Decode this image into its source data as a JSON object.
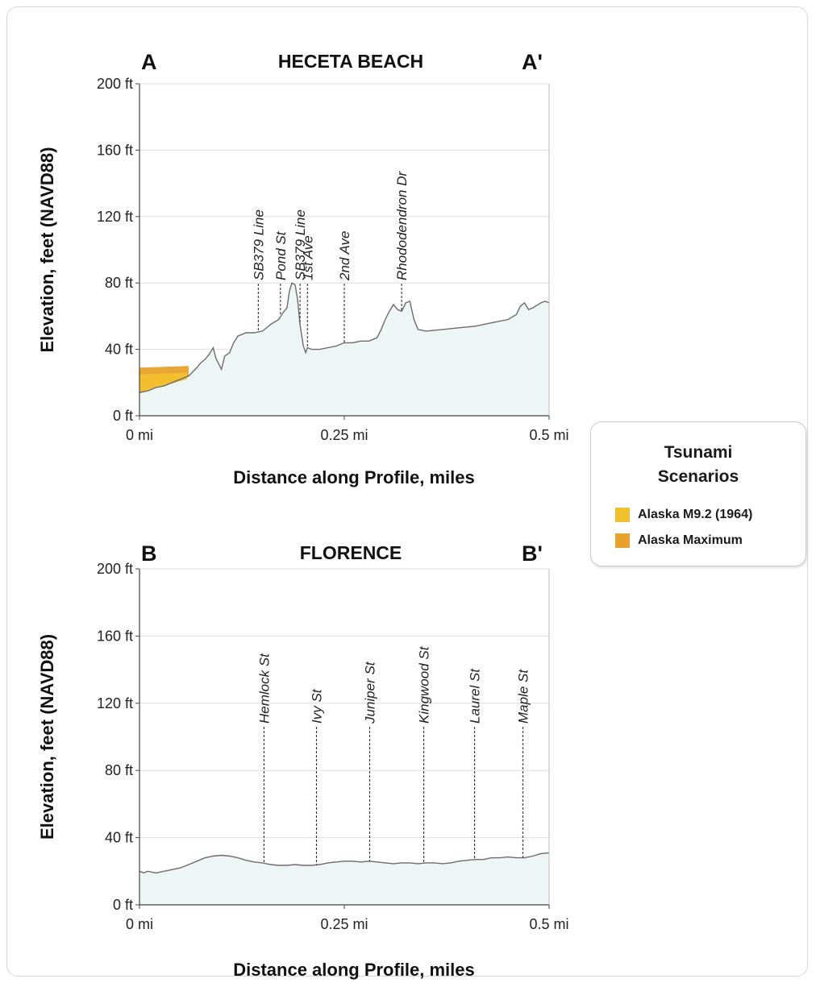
{
  "colors": {
    "land_fill": "#eef5f5",
    "profile_line": "#6b6b6b",
    "grid": "#dddddd",
    "axis": "#444444",
    "alaska_m92": "#f2c12e",
    "alaska_max": "#e8a12a"
  },
  "legend": {
    "title_line1": "Tsunami",
    "title_line2": "Scenarios",
    "items": [
      {
        "label": "Alaska M9.2 (1964)",
        "color": "#f2c12e"
      },
      {
        "label": "Alaska Maximum",
        "color": "#e8a12a"
      }
    ]
  },
  "chart_data": [
    {
      "type": "area",
      "title": "HECETA BEACH",
      "left_label": "A",
      "right_label": "A'",
      "xlabel": "Distance along Profile, miles",
      "ylabel": "Elevation, feet (NAVD88)",
      "xlim": [
        0,
        0.5
      ],
      "ylim": [
        0,
        200
      ],
      "xticks": [
        {
          "value": 0,
          "label": "0 mi"
        },
        {
          "value": 0.25,
          "label": "0.25 mi"
        },
        {
          "value": 0.5,
          "label": "0.5 mi"
        }
      ],
      "yticks": [
        {
          "value": 0,
          "label": "0 ft"
        },
        {
          "value": 40,
          "label": "40 ft"
        },
        {
          "value": 80,
          "label": "80 ft"
        },
        {
          "value": 120,
          "label": "120 ft"
        },
        {
          "value": 160,
          "label": "160 ft"
        },
        {
          "value": 200,
          "label": "200 ft"
        }
      ],
      "profile": [
        [
          0,
          14
        ],
        [
          0.01,
          15
        ],
        [
          0.02,
          17
        ],
        [
          0.03,
          18
        ],
        [
          0.04,
          20
        ],
        [
          0.05,
          22
        ],
        [
          0.06,
          24
        ],
        [
          0.07,
          29
        ],
        [
          0.075,
          32
        ],
        [
          0.08,
          34
        ],
        [
          0.085,
          37
        ],
        [
          0.09,
          41
        ],
        [
          0.093,
          35
        ],
        [
          0.096,
          32
        ],
        [
          0.1,
          28
        ],
        [
          0.104,
          36
        ],
        [
          0.11,
          38
        ],
        [
          0.115,
          44
        ],
        [
          0.12,
          48
        ],
        [
          0.13,
          50
        ],
        [
          0.14,
          50
        ],
        [
          0.15,
          51
        ],
        [
          0.16,
          55
        ],
        [
          0.17,
          58
        ],
        [
          0.175,
          62
        ],
        [
          0.18,
          65
        ],
        [
          0.183,
          75
        ],
        [
          0.186,
          80
        ],
        [
          0.19,
          79
        ],
        [
          0.193,
          70
        ],
        [
          0.196,
          55
        ],
        [
          0.2,
          42
        ],
        [
          0.203,
          38
        ],
        [
          0.205,
          41
        ],
        [
          0.21,
          40
        ],
        [
          0.22,
          40
        ],
        [
          0.23,
          41
        ],
        [
          0.24,
          42
        ],
        [
          0.25,
          44
        ],
        [
          0.26,
          44
        ],
        [
          0.27,
          45
        ],
        [
          0.28,
          45
        ],
        [
          0.29,
          47
        ],
        [
          0.295,
          52
        ],
        [
          0.3,
          58
        ],
        [
          0.305,
          63
        ],
        [
          0.31,
          67
        ],
        [
          0.315,
          64
        ],
        [
          0.32,
          63
        ],
        [
          0.325,
          68
        ],
        [
          0.33,
          69
        ],
        [
          0.335,
          58
        ],
        [
          0.34,
          52
        ],
        [
          0.35,
          51
        ],
        [
          0.37,
          52
        ],
        [
          0.39,
          53
        ],
        [
          0.41,
          54
        ],
        [
          0.43,
          56
        ],
        [
          0.45,
          58
        ],
        [
          0.46,
          61
        ],
        [
          0.465,
          66
        ],
        [
          0.47,
          68
        ],
        [
          0.475,
          64
        ],
        [
          0.48,
          65
        ],
        [
          0.49,
          68
        ],
        [
          0.495,
          69
        ],
        [
          0.5,
          68
        ]
      ],
      "inundation": [
        {
          "scenario": "Alaska M9.2 (1964)",
          "x": [
            0,
            0.058
          ],
          "lower": [
            14,
            22
          ],
          "upper": [
            25,
            26
          ]
        },
        {
          "scenario": "Alaska Maximum",
          "x": [
            0,
            0.06
          ],
          "lower": [
            14,
            24
          ],
          "upper": [
            29,
            30
          ]
        }
      ],
      "annotations": [
        {
          "label": "SB379 Line",
          "x": 0.145,
          "elevation": 51
        },
        {
          "label": "Pond St",
          "x": 0.172,
          "elevation": 61
        },
        {
          "label": "SB379 Line",
          "x": 0.196,
          "elevation": 55
        },
        {
          "label": "1st Ave",
          "x": 0.205,
          "elevation": 41
        },
        {
          "label": "2nd Ave",
          "x": 0.25,
          "elevation": 44
        },
        {
          "label": "Rhododendron Dr",
          "x": 0.32,
          "elevation": 63
        }
      ]
    },
    {
      "type": "area",
      "title": "FLORENCE",
      "left_label": "B",
      "right_label": "B'",
      "xlabel": "Distance along Profile, miles",
      "ylabel": "Elevation, feet (NAVD88)",
      "xlim": [
        0,
        0.5
      ],
      "ylim": [
        0,
        200
      ],
      "xticks": [
        {
          "value": 0,
          "label": "0 mi"
        },
        {
          "value": 0.25,
          "label": "0.25 mi"
        },
        {
          "value": 0.5,
          "label": "0.5 mi"
        }
      ],
      "yticks": [
        {
          "value": 0,
          "label": "0 ft"
        },
        {
          "value": 40,
          "label": "40 ft"
        },
        {
          "value": 80,
          "label": "80 ft"
        },
        {
          "value": 120,
          "label": "120 ft"
        },
        {
          "value": 160,
          "label": "160 ft"
        },
        {
          "value": 200,
          "label": "200 ft"
        }
      ],
      "profile": [
        [
          0,
          20
        ],
        [
          0.005,
          19
        ],
        [
          0.01,
          20
        ],
        [
          0.02,
          19
        ],
        [
          0.03,
          20
        ],
        [
          0.04,
          21
        ],
        [
          0.05,
          22
        ],
        [
          0.06,
          24
        ],
        [
          0.07,
          26
        ],
        [
          0.08,
          28
        ],
        [
          0.09,
          29
        ],
        [
          0.1,
          29.5
        ],
        [
          0.11,
          29
        ],
        [
          0.12,
          28
        ],
        [
          0.13,
          26.5
        ],
        [
          0.14,
          25.5
        ],
        [
          0.15,
          25
        ],
        [
          0.16,
          24
        ],
        [
          0.17,
          23.5
        ],
        [
          0.18,
          23.5
        ],
        [
          0.19,
          24
        ],
        [
          0.2,
          23.5
        ],
        [
          0.21,
          23.5
        ],
        [
          0.22,
          24
        ],
        [
          0.23,
          25
        ],
        [
          0.24,
          25.5
        ],
        [
          0.25,
          26
        ],
        [
          0.26,
          26
        ],
        [
          0.27,
          25.5
        ],
        [
          0.28,
          26
        ],
        [
          0.29,
          25.5
        ],
        [
          0.3,
          25
        ],
        [
          0.31,
          24.5
        ],
        [
          0.32,
          25
        ],
        [
          0.33,
          25
        ],
        [
          0.34,
          24.5
        ],
        [
          0.35,
          25
        ],
        [
          0.36,
          25
        ],
        [
          0.37,
          24.5
        ],
        [
          0.38,
          25
        ],
        [
          0.39,
          26
        ],
        [
          0.4,
          26.5
        ],
        [
          0.41,
          27
        ],
        [
          0.42,
          27
        ],
        [
          0.43,
          28
        ],
        [
          0.44,
          28
        ],
        [
          0.45,
          28.5
        ],
        [
          0.46,
          28
        ],
        [
          0.47,
          28
        ],
        [
          0.48,
          29
        ],
        [
          0.49,
          30.5
        ],
        [
          0.5,
          31
        ]
      ],
      "inundation": [],
      "annotations": [
        {
          "label": "Hemlock St",
          "x": 0.152,
          "elevation": 25
        },
        {
          "label": "Ivy St",
          "x": 0.216,
          "elevation": 24
        },
        {
          "label": "Juniper St",
          "x": 0.281,
          "elevation": 26
        },
        {
          "label": "Kingwood St",
          "x": 0.347,
          "elevation": 25
        },
        {
          "label": "Laurel St",
          "x": 0.409,
          "elevation": 27
        },
        {
          "label": "Maple St",
          "x": 0.468,
          "elevation": 28
        }
      ]
    }
  ]
}
